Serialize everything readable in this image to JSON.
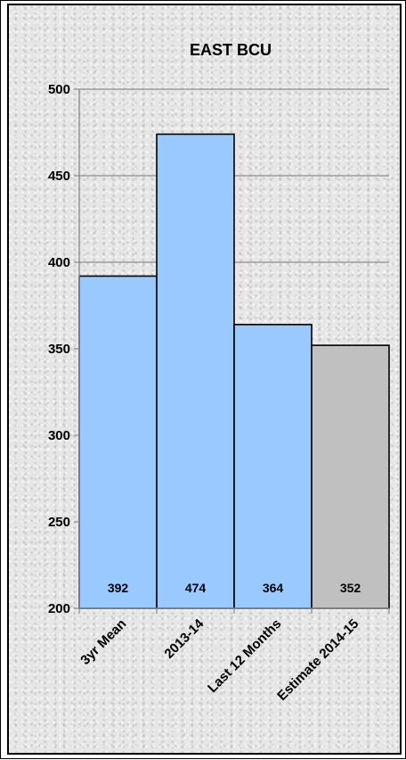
{
  "chart_data": {
    "type": "bar",
    "title": "EAST BCU",
    "xlabel": "",
    "ylabel": "",
    "categories": [
      "3yr Mean",
      "2013-14",
      "Last 12 Months",
      "Estimate 2014-15"
    ],
    "values": [
      392,
      474,
      364,
      352
    ],
    "data_labels": [
      "392",
      "474",
      "364",
      "352"
    ],
    "ylim": [
      200,
      500
    ],
    "yticks": [
      200,
      250,
      300,
      350,
      400,
      450,
      500
    ],
    "ytick_labels": [
      "200",
      "250",
      "300",
      "350",
      "400",
      "450",
      "500"
    ],
    "grid": true,
    "legend": "none",
    "colors": {
      "actual": "#99c9ff",
      "estimate": "#c0c0c0",
      "outline": "#000000",
      "grid": "#8c8c8c"
    },
    "bar_colors": [
      "#99c9ff",
      "#99c9ff",
      "#99c9ff",
      "#c0c0c0"
    ]
  }
}
